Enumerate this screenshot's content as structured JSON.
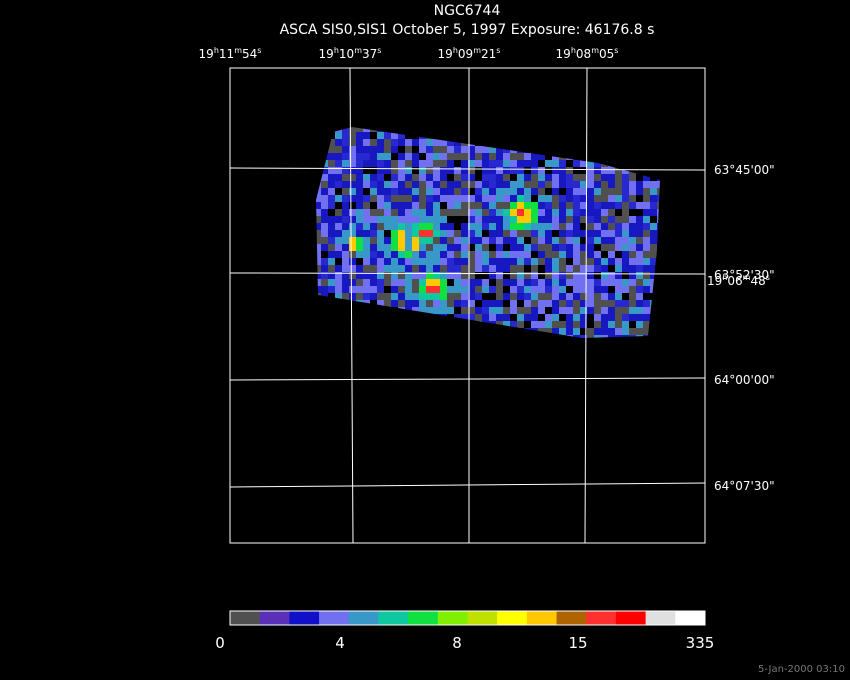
{
  "header": {
    "title": "NGC6744",
    "subtitle": "ASCA SIS0,SIS1 October 5, 1997 Exposure: 46176.8 s"
  },
  "ra_labels": [
    [
      "19",
      "h",
      "11",
      "m",
      "54",
      "s"
    ],
    [
      "19",
      "h",
      "10",
      "m",
      "37",
      "s"
    ],
    [
      "19",
      "h",
      "09",
      "m",
      "21",
      "s"
    ],
    [
      "19",
      "h",
      "08",
      "m",
      "05",
      "s"
    ]
  ],
  "dec_labels": [
    "63°45'00\"",
    "63°52'30\"",
    "64°00'00\"",
    "64°07'30\""
  ],
  "overlap_label": [
    "19",
    "h",
    "06",
    "m",
    "48",
    "s"
  ],
  "colorbar": {
    "colors": [
      "#505050",
      "#5a30b8",
      "#1010c8",
      "#7070f0",
      "#3898c8",
      "#10c8a0",
      "#10e040",
      "#80f000",
      "#c0e000",
      "#ffff00",
      "#ffc800",
      "#b06400",
      "#ff3030",
      "#ff0000",
      "#e0e0e0",
      "#ffffff"
    ],
    "labels": [
      "0",
      "4",
      "8",
      "15",
      "335"
    ]
  },
  "footer": "5-Jan-2000 03:10"
}
